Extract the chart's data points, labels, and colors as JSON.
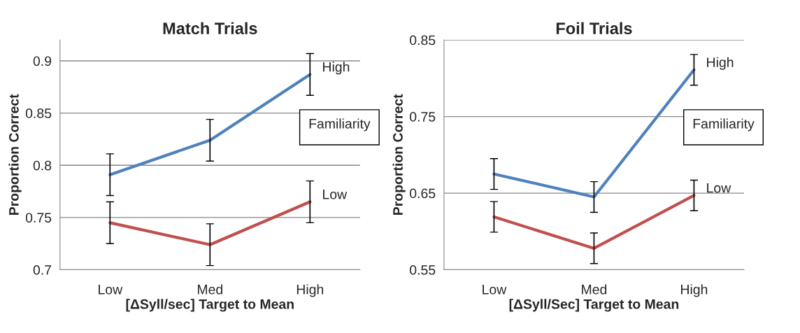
{
  "chart_data": [
    {
      "type": "line",
      "title": "Match Trials",
      "xlabel": "[ΔSyll/sec] Target to Mean",
      "ylabel": "Proportion Correct",
      "categories": [
        "Low",
        "Med",
        "High"
      ],
      "ylim": [
        0.7,
        0.92
      ],
      "yticks": [
        {
          "value": 0.7,
          "label": "0.7"
        },
        {
          "value": 0.75,
          "label": "0.75"
        },
        {
          "value": 0.8,
          "label": "0.8"
        },
        {
          "value": 0.85,
          "label": "0.85"
        },
        {
          "value": 0.9,
          "label": "0.9"
        }
      ],
      "grid": "y",
      "legend": "right",
      "legend_title": "Familiarity",
      "marker": "none",
      "line_style": "solid",
      "series": [
        {
          "name": "High",
          "color": "#4f81bd",
          "values": [
            0.791,
            0.824,
            0.887
          ],
          "errors": [
            0.02,
            0.02,
            0.02
          ]
        },
        {
          "name": "Low",
          "color": "#c0504d",
          "values": [
            0.745,
            0.724,
            0.765
          ],
          "errors": [
            0.02,
            0.02,
            0.02
          ]
        }
      ]
    },
    {
      "type": "line",
      "title": "Foil Trials",
      "xlabel": "[ΔSyll/Sec] Target to Mean",
      "ylabel": "Proportion Correct",
      "categories": [
        "Low",
        "Med",
        "High"
      ],
      "ylim": [
        0.55,
        0.85
      ],
      "yticks": [
        {
          "value": 0.55,
          "label": "0.55"
        },
        {
          "value": 0.65,
          "label": "0.65"
        },
        {
          "value": 0.75,
          "label": "0.75"
        },
        {
          "value": 0.85,
          "label": "0.85"
        }
      ],
      "grid": "y",
      "legend": "right",
      "legend_title": "Familiarity",
      "marker": "none",
      "line_style": "solid",
      "series": [
        {
          "name": "High",
          "color": "#4f81bd",
          "values": [
            0.675,
            0.645,
            0.811
          ],
          "errors": [
            0.02,
            0.02,
            0.02
          ]
        },
        {
          "name": "Low",
          "color": "#c0504d",
          "values": [
            0.619,
            0.578,
            0.647
          ],
          "errors": [
            0.02,
            0.02,
            0.02
          ]
        }
      ]
    }
  ]
}
